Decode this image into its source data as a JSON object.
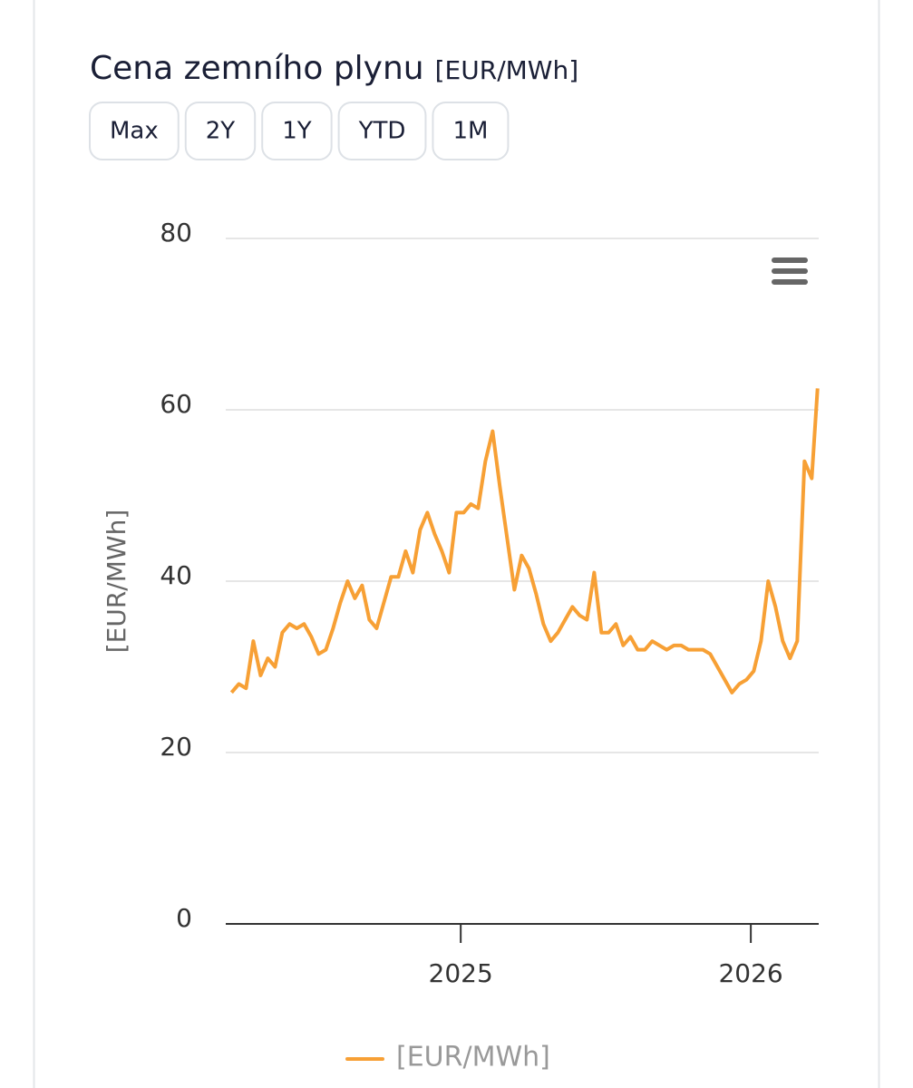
{
  "page": {
    "buttons": [
      "Max",
      "2Y",
      "1Y",
      "YTD",
      "1M"
    ]
  },
  "chart_data": {
    "type": "line",
    "title": "Cena zemního plynu",
    "title_unit": "[EUR/MWh]",
    "y_label": "[EUR/MWh]",
    "x": [
      2024.21,
      2024.235,
      2024.26,
      2024.285,
      2024.31,
      2024.335,
      2024.36,
      2024.385,
      2024.41,
      2024.435,
      2024.46,
      2024.485,
      2024.51,
      2024.535,
      2024.56,
      2024.585,
      2024.61,
      2024.635,
      2024.66,
      2024.685,
      2024.71,
      2024.735,
      2024.76,
      2024.785,
      2024.81,
      2024.835,
      2024.86,
      2024.885,
      2024.91,
      2024.935,
      2024.96,
      2024.985,
      2025.01,
      2025.035,
      2025.06,
      2025.085,
      2025.11,
      2025.135,
      2025.16,
      2025.185,
      2025.21,
      2025.235,
      2025.26,
      2025.285,
      2025.31,
      2025.335,
      2025.36,
      2025.385,
      2025.41,
      2025.435,
      2025.46,
      2025.485,
      2025.51,
      2025.535,
      2025.56,
      2025.585,
      2025.61,
      2025.635,
      2025.66,
      2025.685,
      2025.71,
      2025.735,
      2025.76,
      2025.785,
      2025.81,
      2025.835,
      2025.86,
      2025.885,
      2025.91,
      2025.935,
      2025.96,
      2025.985,
      2026.01,
      2026.035,
      2026.06,
      2026.085,
      2026.11,
      2026.135,
      2026.16,
      2026.185,
      2026.21,
      2026.23
    ],
    "series": [
      {
        "name": "[EUR/MWh]",
        "color": "#f7a035",
        "values": [
          27,
          28,
          27.5,
          33,
          29,
          31,
          30,
          34,
          35,
          34.5,
          35,
          33.5,
          31.5,
          32,
          34.5,
          37.5,
          40,
          38,
          39.5,
          35.5,
          34.5,
          37.5,
          40.5,
          40.5,
          43.5,
          41,
          46,
          48,
          45.5,
          43.5,
          41,
          48,
          48,
          49,
          48.5,
          54,
          57.5,
          51,
          45,
          39,
          43,
          41.5,
          38.5,
          35,
          33,
          34,
          35.5,
          37,
          36,
          35.5,
          41,
          34,
          34,
          35,
          32.5,
          33.5,
          32,
          32,
          33,
          32.5,
          32,
          32.5,
          32.5,
          32,
          32,
          32,
          31.5,
          30,
          28.5,
          27,
          28,
          28.5,
          29.5,
          33,
          40,
          37,
          33,
          31,
          33,
          54,
          52,
          62.5
        ]
      }
    ],
    "xlim": [
      2024.19,
      2026.234
    ],
    "xticks": [
      2025,
      2026
    ],
    "ylim": [
      0,
      80
    ],
    "yticks": [
      0,
      20,
      40,
      60,
      80
    ],
    "grid": true,
    "legend": "bottom"
  }
}
